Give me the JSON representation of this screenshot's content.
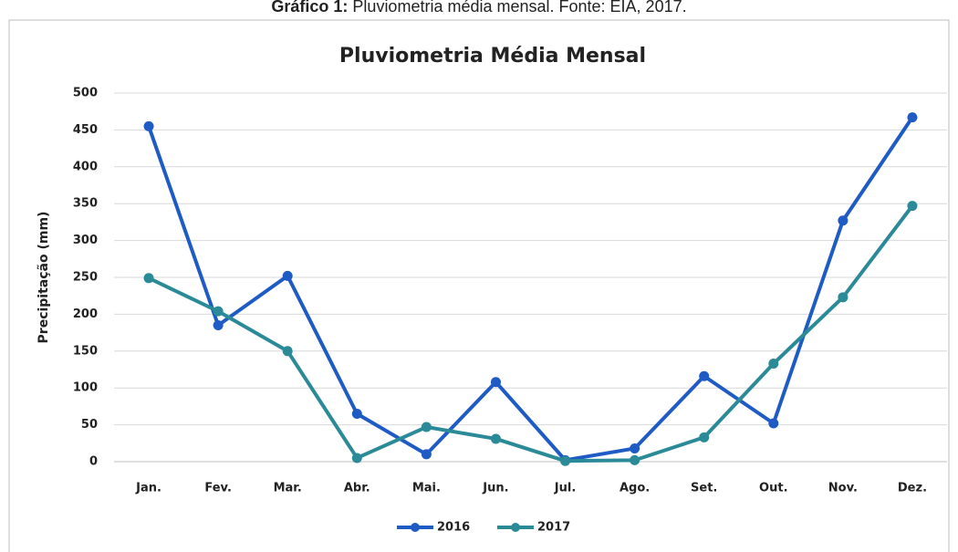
{
  "caption": {
    "label": "Gráfico 1:",
    "text": "Pluviometria média mensal. Fonte: EIA, 2017."
  },
  "chart_data": {
    "type": "line",
    "title": "Pluviometria Média Mensal",
    "y_label": "Precipitação (mm)",
    "categories": [
      "Jan.",
      "Fev.",
      "Mar.",
      "Abr.",
      "Mai.",
      "Jun.",
      "Jul.",
      "Ago.",
      "Set.",
      "Out.",
      "Nov.",
      "Dez."
    ],
    "series": [
      {
        "name": "2016",
        "color": "#1f5bc4",
        "values": [
          455,
          185,
          252,
          65,
          10,
          108,
          2,
          18,
          116,
          52,
          327,
          467
        ]
      },
      {
        "name": "2017",
        "color": "#2b8a98",
        "values": [
          249,
          204,
          150,
          5,
          47,
          31,
          1,
          2,
          33,
          133,
          223,
          347
        ]
      }
    ],
    "ylim": [
      0,
      500
    ],
    "yticks": [
      0,
      50,
      100,
      150,
      200,
      250,
      300,
      350,
      400,
      450,
      500
    ],
    "grid": true,
    "legend": "bottom"
  }
}
